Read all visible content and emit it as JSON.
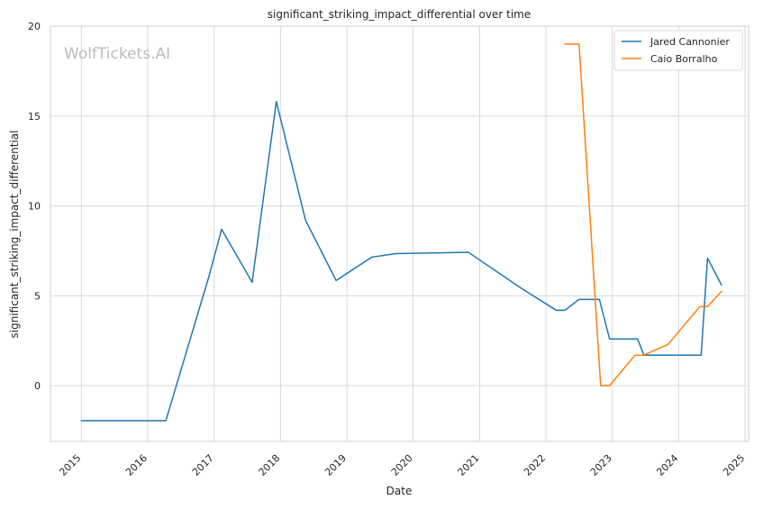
{
  "chart_data": {
    "type": "line",
    "title": "significant_striking_impact_differential over time",
    "xlabel": "Date",
    "ylabel": "significant_striking_impact_differential",
    "watermark": "WolfTickets.AI",
    "x_axis": {
      "kind": "time",
      "min": "2014-07-15",
      "max": "2025-01-20",
      "ticks": [
        "2015",
        "2016",
        "2017",
        "2018",
        "2019",
        "2020",
        "2021",
        "2022",
        "2023",
        "2024",
        "2025"
      ]
    },
    "y_axis": {
      "min": -3.1,
      "max": 20,
      "ticks": [
        0,
        5,
        10,
        15,
        20
      ]
    },
    "grid": true,
    "legend": {
      "position": "top-right"
    },
    "series": [
      {
        "name": "Jared Cannonier",
        "color": "#1f77b4",
        "points": [
          [
            "2015-01-01",
            -1.95
          ],
          [
            "2016-04-10",
            -1.95
          ],
          [
            "2016-12-01",
            6.0
          ],
          [
            "2017-02-11",
            8.7
          ],
          [
            "2017-07-29",
            5.75
          ],
          [
            "2017-12-09",
            15.8
          ],
          [
            "2018-05-19",
            9.2
          ],
          [
            "2018-11-03",
            5.85
          ],
          [
            "2019-05-18",
            7.15
          ],
          [
            "2019-09-28",
            7.35
          ],
          [
            "2020-10-31",
            7.42
          ],
          [
            "2021-08-21",
            5.4
          ],
          [
            "2022-02-26",
            4.2
          ],
          [
            "2022-04-16",
            4.2
          ],
          [
            "2022-07-02",
            4.8
          ],
          [
            "2022-10-22",
            4.8
          ],
          [
            "2022-12-17",
            2.6
          ],
          [
            "2023-05-20",
            2.6
          ],
          [
            "2023-06-24",
            1.7
          ],
          [
            "2024-05-04",
            1.7
          ],
          [
            "2024-06-08",
            7.1
          ],
          [
            "2024-08-24",
            5.6
          ]
        ]
      },
      {
        "name": "Caio Borralho",
        "color": "#ff7f0e",
        "points": [
          [
            "2022-04-16",
            19.0
          ],
          [
            "2022-07-02",
            19.0
          ],
          [
            "2022-10-29",
            0.0
          ],
          [
            "2022-12-17",
            0.0
          ],
          [
            "2023-05-06",
            1.7
          ],
          [
            "2023-06-24",
            1.7
          ],
          [
            "2023-11-04",
            2.3
          ],
          [
            "2024-04-27",
            4.4
          ],
          [
            "2024-06-08",
            4.4
          ],
          [
            "2024-08-24",
            5.25
          ]
        ]
      }
    ]
  }
}
